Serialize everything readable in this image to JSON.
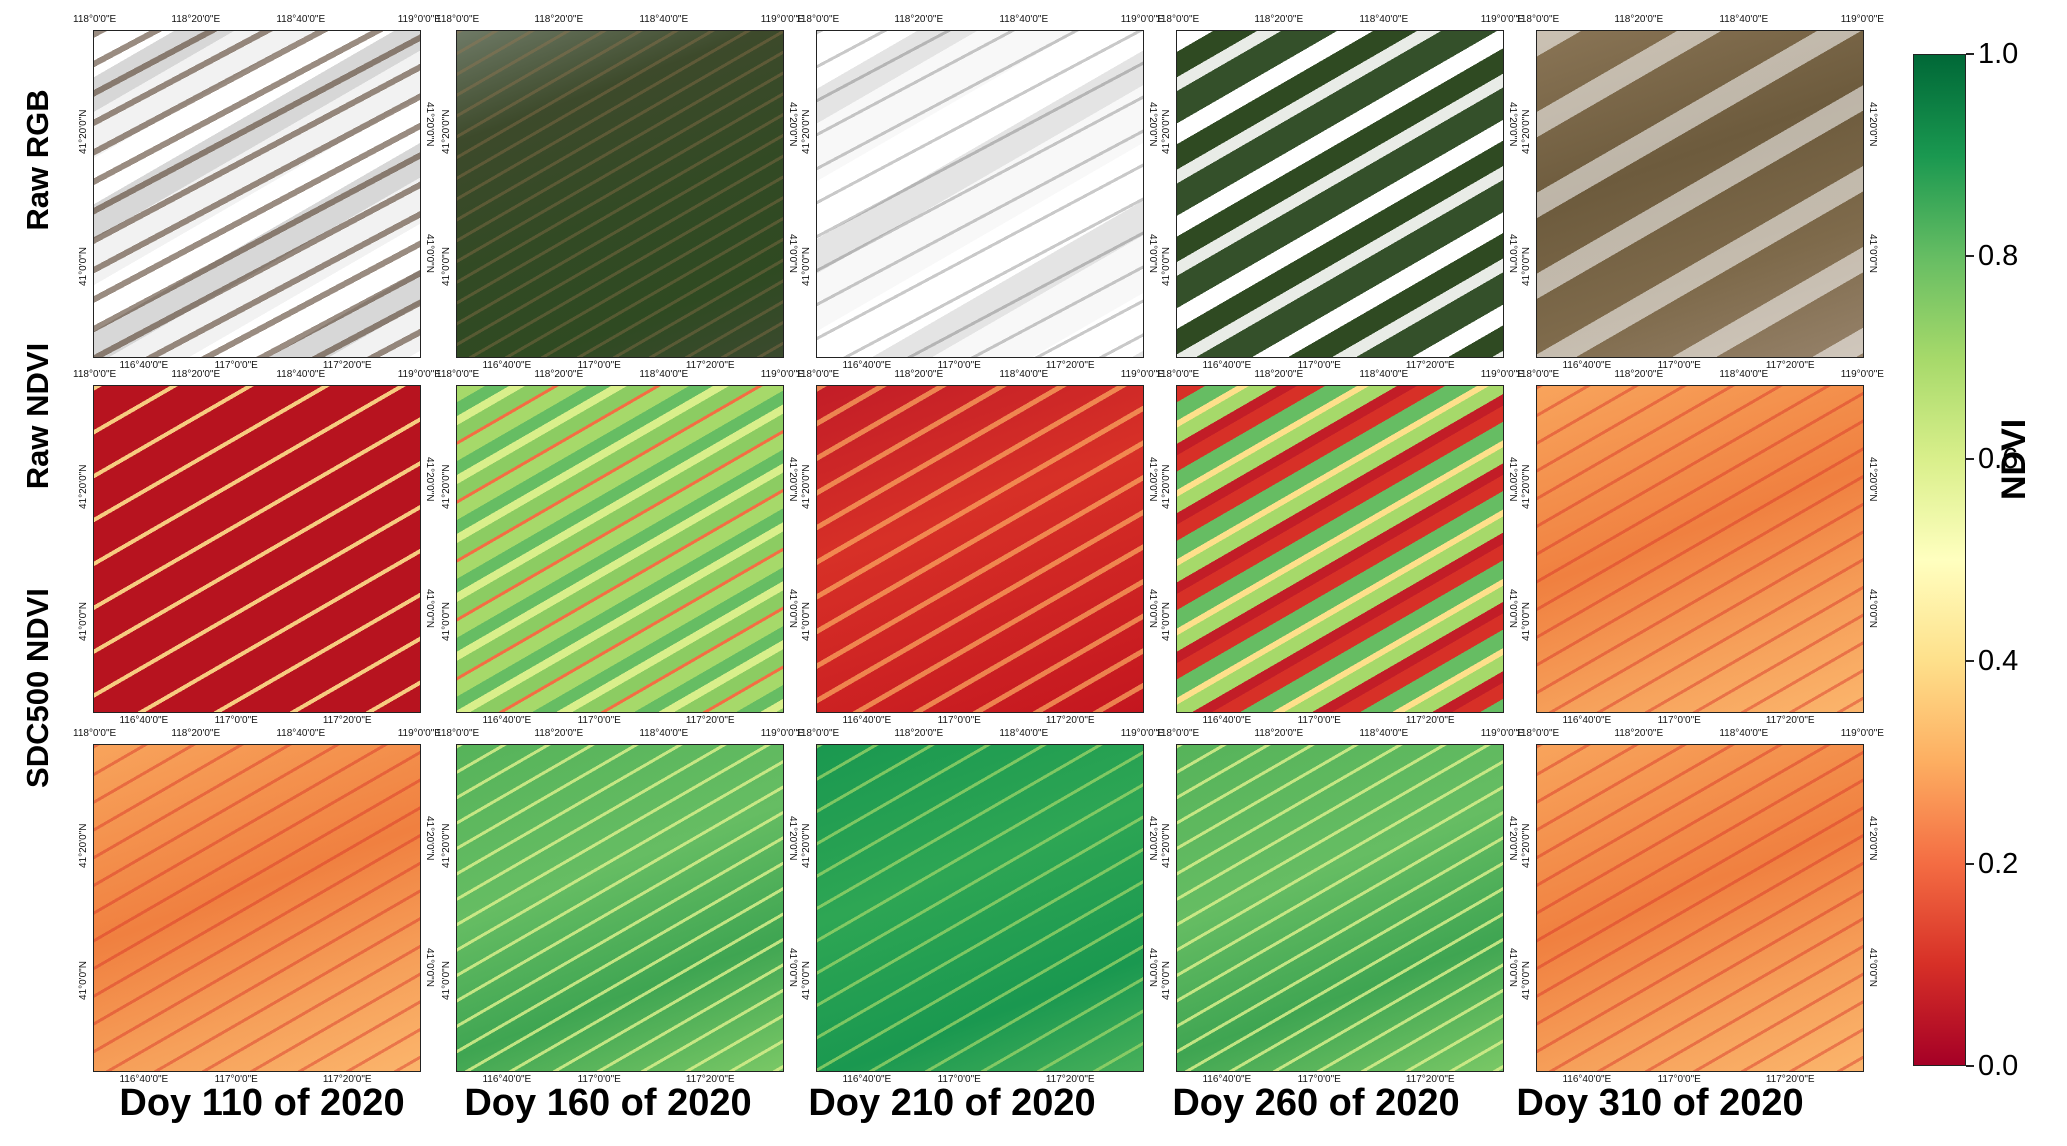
{
  "rows": [
    {
      "label": "Raw RGB"
    },
    {
      "label": "Raw NDVI"
    },
    {
      "label": "SDC500 NDVI"
    }
  ],
  "columns": [
    {
      "label": "Doy 110 of 2020"
    },
    {
      "label": "Doy 160 of 2020"
    },
    {
      "label": "Doy 210 of 2020"
    },
    {
      "label": "Doy 260 of 2020"
    },
    {
      "label": "Doy 310 of 2020"
    }
  ],
  "top_ticks": [
    "118°0'0\"E",
    "118°20'0\"E",
    "118°40'0\"E",
    "119°0'0\"E"
  ],
  "bottom_ticks": [
    "116°40'0\"E",
    "117°0'0\"E",
    "117°20'0\"E"
  ],
  "left_ticks": [
    "41°20'0\"N",
    "41°0'0\"N"
  ],
  "right_ticks": [
    "41°20'0\"N",
    "41°0'0\"N"
  ],
  "colorbar": {
    "title": "NDVI",
    "ticks": [
      "1.0",
      "0.8",
      "0.6",
      "0.4",
      "0.2",
      "0.0"
    ],
    "colors": [
      "#a50026",
      "#d73027",
      "#f46d43",
      "#fdae61",
      "#fee08b",
      "#ffffbf",
      "#d9ef8b",
      "#a6d96a",
      "#66bd63",
      "#1a9850",
      "#006837"
    ]
  },
  "panel_styles": [
    [
      "rgb-cloudy",
      "rgb-green",
      "rgb-white",
      "rgb-mixed",
      "rgb-brown"
    ],
    [
      "ndvi-red",
      "ndvi-lightgreen",
      "ndvi-red-alt",
      "ndvi-mixed",
      "ndvi-orange"
    ],
    [
      "ndvi-orange",
      "ndvi-green",
      "ndvi-darkgreen",
      "ndvi-green",
      "ndvi-orange"
    ]
  ]
}
